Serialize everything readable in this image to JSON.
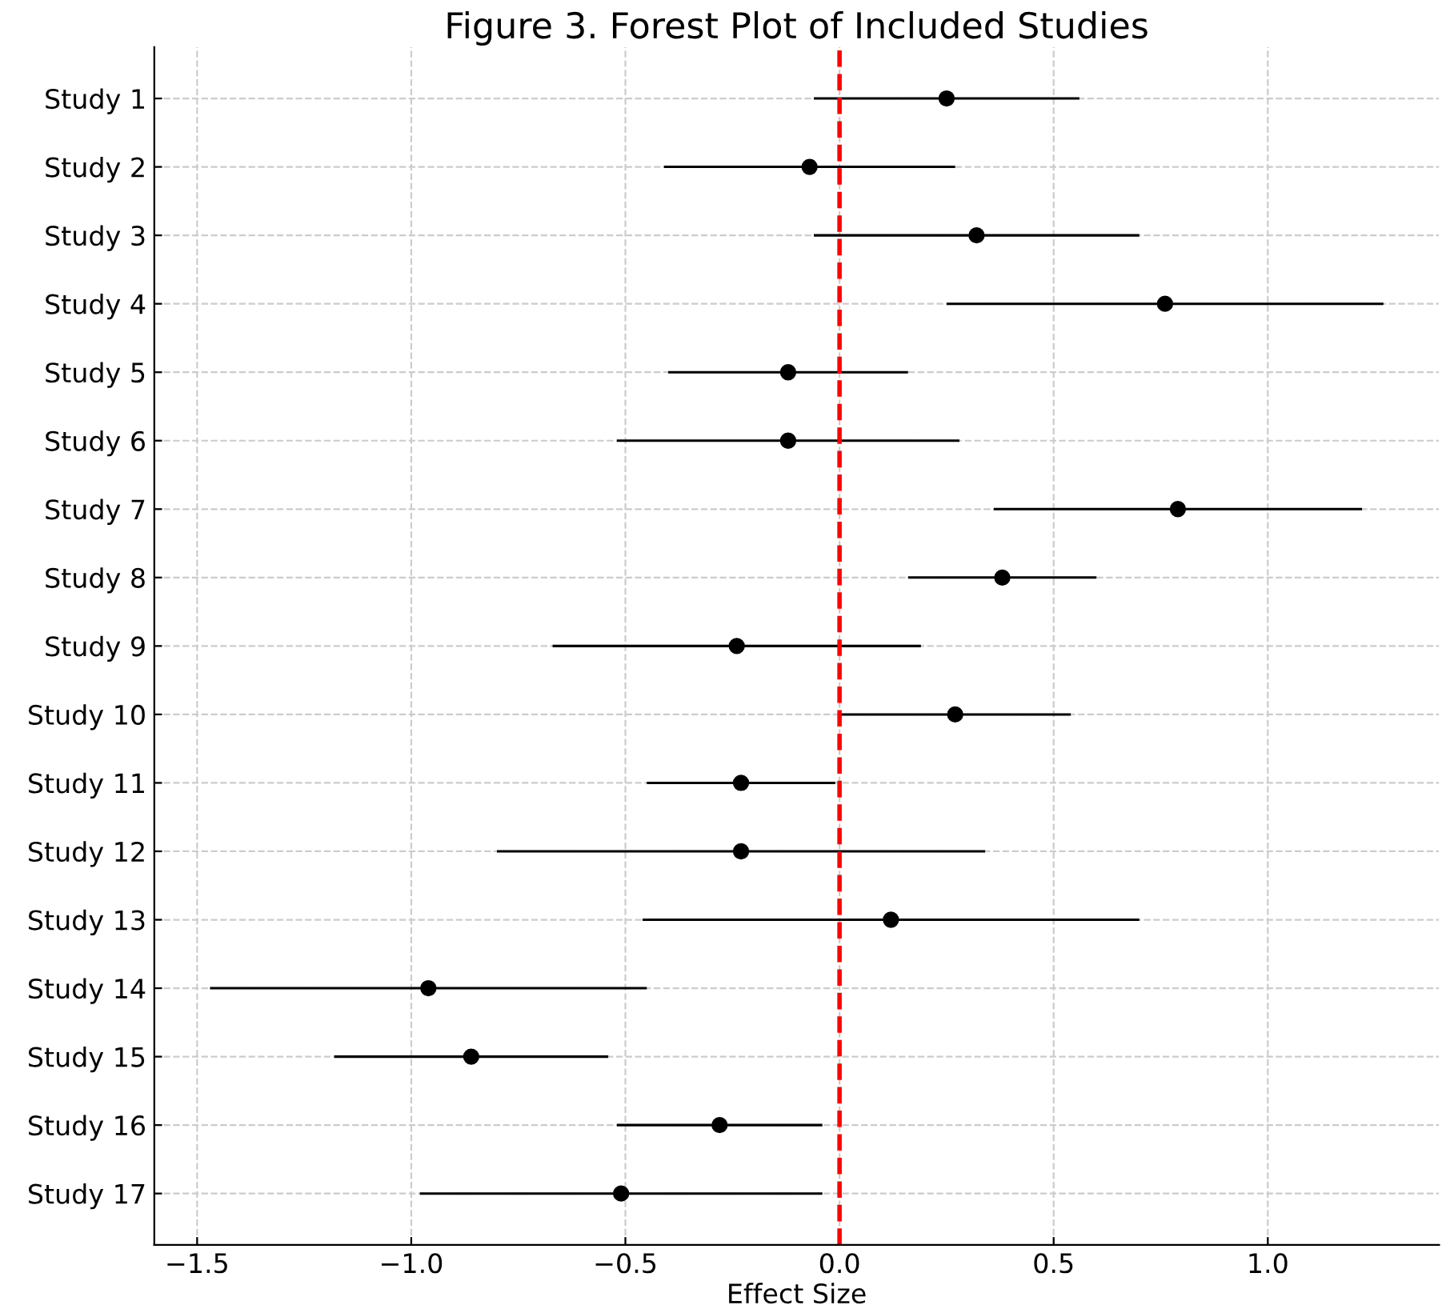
{
  "chart_data": {
    "type": "scatter",
    "orientation": "horizontal",
    "title": "Figure 3. Forest Plot of Included Studies",
    "xlabel": "Effect Size",
    "categories": [
      "Study 1",
      "Study 2",
      "Study 3",
      "Study 4",
      "Study 5",
      "Study 6",
      "Study 7",
      "Study 8",
      "Study 9",
      "Study 10",
      "Study 11",
      "Study 12",
      "Study 13",
      "Study 14",
      "Study 15",
      "Study 16",
      "Study 17"
    ],
    "series": [
      {
        "color": "#000000",
        "values": [
          0.25,
          -0.07,
          0.32,
          0.76,
          -0.12,
          -0.12,
          0.79,
          0.38,
          -0.24,
          0.27,
          -0.23,
          -0.23,
          0.12,
          -0.96,
          -0.86,
          -0.28,
          -0.51
        ],
        "errors": [
          0.31,
          0.34,
          0.38,
          0.51,
          0.28,
          0.4,
          0.43,
          0.22,
          0.43,
          0.27,
          0.22,
          0.57,
          0.58,
          0.51,
          0.32,
          0.24,
          0.47
        ]
      }
    ],
    "xlim": [
      -1.6,
      1.4
    ],
    "xticks": [
      {
        "value": -1.5,
        "label": "−1.5"
      },
      {
        "value": -1.0,
        "label": "−1.0"
      },
      {
        "value": -0.5,
        "label": "−0.5"
      },
      {
        "value": 0.0,
        "label": "0.0"
      },
      {
        "value": 0.5,
        "label": "0.5"
      },
      {
        "value": 1.0,
        "label": "1.0"
      }
    ],
    "ref_lines": [
      {
        "axis": "x",
        "value": 0,
        "color": "#ff0000",
        "line_style": "dashed"
      }
    ],
    "grid": true,
    "marker": "circle",
    "legend": false
  }
}
